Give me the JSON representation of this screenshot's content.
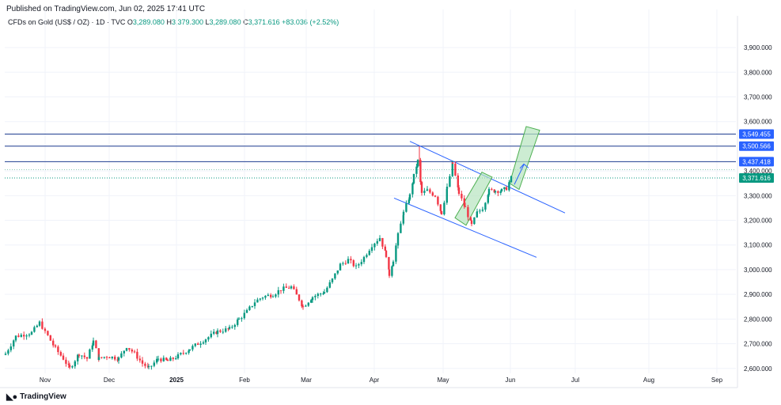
{
  "header": {
    "published": "Published on TradingView.com, Jun 02, 2025 17:41 UTC"
  },
  "legend": {
    "symbol": "CFDs on Gold (US$ / OZ) · 1D · TVC",
    "o_label": "O",
    "o_value": "3,289.080",
    "h_label": "H",
    "h_value": "3,379.300",
    "l_label": "L",
    "l_value": "3,289.080",
    "c_label": "C",
    "c_value": "3,371.616",
    "change": "+83.036 (+2.52%)"
  },
  "footer": {
    "brand": "TradingView"
  },
  "colors": {
    "up": "#089981",
    "down": "#f23645",
    "trend": "#2962ff",
    "level": "#1e3d8f",
    "channel_fill": "#b7e4bf",
    "channel_stroke": "#4caf50",
    "grid": "#f0f3fa"
  },
  "chart_data": {
    "type": "candlestick",
    "ylim": [
      2580,
      3990
    ],
    "x_axis_labels": [
      "Nov",
      "Dec",
      "2025",
      "Feb",
      "Mar",
      "Apr",
      "May",
      "Jun",
      "Jul",
      "Aug",
      "Sep"
    ],
    "y_tick_labels": [
      "3,900.000",
      "3,800.000",
      "3,700.000",
      "3,600.000",
      "3,500.000",
      "3,400.000",
      "3,300.000",
      "3,200.000",
      "3,100.000",
      "3,000.000",
      "2,900.000",
      "2,800.000",
      "2,700.000",
      "2,600.000"
    ],
    "y_ticks": [
      3900,
      3800,
      3700,
      3600,
      3500,
      3400,
      3300,
      3200,
      3100,
      3000,
      2900,
      2800,
      2700,
      2600
    ],
    "price_labels": [
      {
        "label": "3,549.455",
        "value": 3549.455,
        "kind": "level"
      },
      {
        "label": "3,500.566",
        "value": 3500.566,
        "kind": "level"
      },
      {
        "label": "3,437.418",
        "value": 3437.418,
        "kind": "level"
      },
      {
        "label": "3,371.616",
        "value": 3371.616,
        "kind": "last"
      }
    ],
    "last_price": 3371.616
  }
}
